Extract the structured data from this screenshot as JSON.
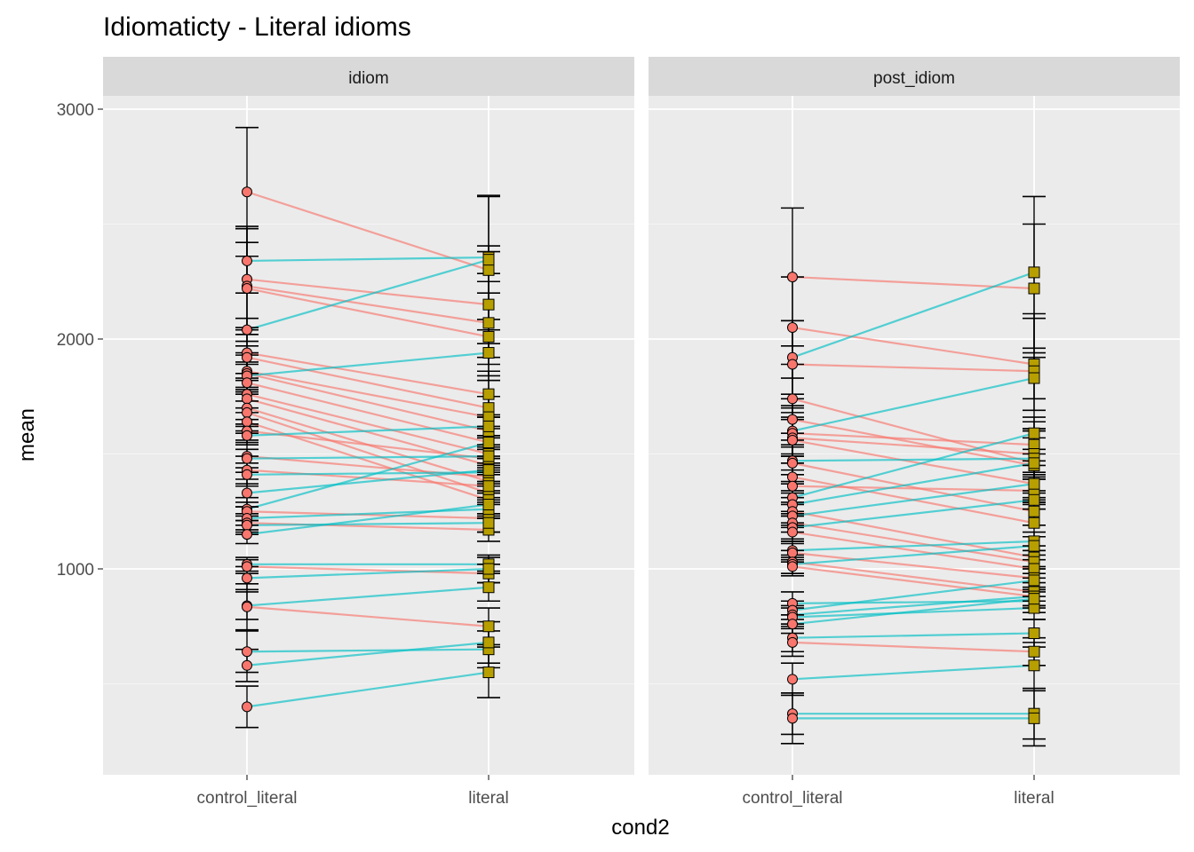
{
  "chart_data": {
    "type": "line",
    "title": "Idiomaticty - Literal idioms",
    "xlabel": "cond2",
    "ylabel": "mean",
    "categories": [
      "control_literal",
      "literal"
    ],
    "ylim": [
      200,
      3100
    ],
    "yticks": [
      1000,
      2000,
      3000
    ],
    "grid": true,
    "legend": "none",
    "colors": {
      "decrease_line": "#F8766D",
      "increase_line": "#00BFC4",
      "control_literal_point": "#F8766D",
      "literal_point": "#B79F00",
      "error_bar": "#000000"
    },
    "panels": [
      {
        "name": "idiom",
        "pairs": [
          {
            "control_literal": 2640,
            "literal": 2300,
            "control_literal_err": 280,
            "literal_err": 320
          },
          {
            "control_literal": 2340,
            "literal": 2355,
            "control_literal_err": 140,
            "literal_err": 270
          },
          {
            "control_literal": 2260,
            "literal": 2150,
            "control_literal_err": 220,
            "literal_err": 230
          },
          {
            "control_literal": 2230,
            "literal": 2070,
            "control_literal_err": 260,
            "literal_err": 180
          },
          {
            "control_literal": 2220,
            "literal": 2010,
            "control_literal_err": 200,
            "literal_err": 190
          },
          {
            "control_literal": 2040,
            "literal": 2345,
            "control_literal_err": 50,
            "literal_err": 60
          },
          {
            "control_literal": 1940,
            "literal": 1760,
            "control_literal_err": 110,
            "literal_err": 100
          },
          {
            "control_literal": 1920,
            "literal": 1700,
            "control_literal_err": 100,
            "literal_err": 120
          },
          {
            "control_literal": 1860,
            "literal": 1660,
            "control_literal_err": 70,
            "literal_err": 90
          },
          {
            "control_literal": 1850,
            "literal": 1600,
            "control_literal_err": 90,
            "literal_err": 60
          },
          {
            "control_literal": 1840,
            "literal": 1940,
            "control_literal_err": 60,
            "literal_err": 100
          },
          {
            "control_literal": 1810,
            "literal": 1550,
            "control_literal_err": 80,
            "literal_err": 70
          },
          {
            "control_literal": 1760,
            "literal": 1500,
            "control_literal_err": 60,
            "literal_err": 80
          },
          {
            "control_literal": 1740,
            "literal": 1450,
            "control_literal_err": 110,
            "literal_err": 70
          },
          {
            "control_literal": 1700,
            "literal": 1380,
            "control_literal_err": 70,
            "literal_err": 50
          },
          {
            "control_literal": 1680,
            "literal": 1330,
            "control_literal_err": 90,
            "literal_err": 40
          },
          {
            "control_literal": 1640,
            "literal": 1300,
            "control_literal_err": 40,
            "literal_err": 60
          },
          {
            "control_literal": 1600,
            "literal": 1480,
            "control_literal_err": 50,
            "literal_err": 40
          },
          {
            "control_literal": 1580,
            "literal": 1620,
            "control_literal_err": 40,
            "literal_err": 50
          },
          {
            "control_literal": 1490,
            "literal": 1400,
            "control_literal_err": 70,
            "literal_err": 60
          },
          {
            "control_literal": 1480,
            "literal": 1490,
            "control_literal_err": 40,
            "literal_err": 40
          },
          {
            "control_literal": 1430,
            "literal": 1360,
            "control_literal_err": 60,
            "literal_err": 50
          },
          {
            "control_literal": 1410,
            "literal": 1420,
            "control_literal_err": 50,
            "literal_err": 60
          },
          {
            "control_literal": 1330,
            "literal": 1430,
            "control_literal_err": 60,
            "literal_err": 50
          },
          {
            "control_literal": 1260,
            "literal": 1550,
            "control_literal_err": 50,
            "literal_err": 60
          },
          {
            "control_literal": 1250,
            "literal": 1220,
            "control_literal_err": 40,
            "literal_err": 60
          },
          {
            "control_literal": 1220,
            "literal": 1260,
            "control_literal_err": 50,
            "literal_err": 40
          },
          {
            "control_literal": 1200,
            "literal": 1170,
            "control_literal_err": 40,
            "literal_err": 50
          },
          {
            "control_literal": 1190,
            "literal": 1200,
            "control_literal_err": 40,
            "literal_err": 40
          },
          {
            "control_literal": 1150,
            "literal": 1280,
            "control_literal_err": 40,
            "literal_err": 50
          },
          {
            "control_literal": 1020,
            "literal": 1020,
            "control_literal_err": 30,
            "literal_err": 30
          },
          {
            "control_literal": 1010,
            "literal": 980,
            "control_literal_err": 30,
            "literal_err": 40
          },
          {
            "control_literal": 960,
            "literal": 1000,
            "control_literal_err": 50,
            "literal_err": 60
          },
          {
            "control_literal": 840,
            "literal": 920,
            "control_literal_err": 60,
            "literal_err": 60
          },
          {
            "control_literal": 835,
            "literal": 750,
            "control_literal_err": 100,
            "literal_err": 80
          },
          {
            "control_literal": 640,
            "literal": 650,
            "control_literal_err": 90,
            "literal_err": 80
          },
          {
            "control_literal": 580,
            "literal": 680,
            "control_literal_err": 70,
            "literal_err": 90
          },
          {
            "control_literal": 400,
            "literal": 550,
            "control_literal_err": 90,
            "literal_err": 110
          }
        ]
      },
      {
        "name": "post_idiom",
        "pairs": [
          {
            "control_literal": 2270,
            "literal": 2220,
            "control_literal_err": 300,
            "literal_err": 280
          },
          {
            "control_literal": 2050,
            "literal": 1890,
            "control_literal_err": 220,
            "literal_err": 200
          },
          {
            "control_literal": 1920,
            "literal": 2290,
            "control_literal_err": 160,
            "literal_err": 330
          },
          {
            "control_literal": 1890,
            "literal": 1860,
            "control_literal_err": 190,
            "literal_err": 250
          },
          {
            "control_literal": 1740,
            "literal": 1460,
            "control_literal_err": 150,
            "literal_err": 180
          },
          {
            "control_literal": 1650,
            "literal": 1450,
            "control_literal_err": 90,
            "literal_err": 150
          },
          {
            "control_literal": 1600,
            "literal": 1830,
            "control_literal_err": 110,
            "literal_err": 90
          },
          {
            "control_literal": 1590,
            "literal": 1540,
            "control_literal_err": 90,
            "literal_err": 70
          },
          {
            "control_literal": 1570,
            "literal": 1500,
            "control_literal_err": 80,
            "literal_err": 100
          },
          {
            "control_literal": 1560,
            "literal": 1370,
            "control_literal_err": 100,
            "literal_err": 80
          },
          {
            "control_literal": 1470,
            "literal": 1480,
            "control_literal_err": 60,
            "literal_err": 90
          },
          {
            "control_literal": 1460,
            "literal": 1250,
            "control_literal_err": 80,
            "literal_err": 60
          },
          {
            "control_literal": 1400,
            "literal": 1200,
            "control_literal_err": 60,
            "literal_err": 60
          },
          {
            "control_literal": 1360,
            "literal": 1340,
            "control_literal_err": 70,
            "literal_err": 50
          },
          {
            "control_literal": 1310,
            "literal": 1590,
            "control_literal_err": 60,
            "literal_err": 70
          },
          {
            "control_literal": 1280,
            "literal": 1460,
            "control_literal_err": 50,
            "literal_err": 40
          },
          {
            "control_literal": 1250,
            "literal": 1050,
            "control_literal_err": 60,
            "literal_err": 50
          },
          {
            "control_literal": 1230,
            "literal": 1370,
            "control_literal_err": 50,
            "literal_err": 40
          },
          {
            "control_literal": 1200,
            "literal": 1030,
            "control_literal_err": 40,
            "literal_err": 50
          },
          {
            "control_literal": 1180,
            "literal": 1300,
            "control_literal_err": 50,
            "literal_err": 40
          },
          {
            "control_literal": 1160,
            "literal": 1000,
            "control_literal_err": 40,
            "literal_err": 40
          },
          {
            "control_literal": 1080,
            "literal": 1120,
            "control_literal_err": 40,
            "literal_err": 40
          },
          {
            "control_literal": 1070,
            "literal": 960,
            "control_literal_err": 40,
            "literal_err": 50
          },
          {
            "control_literal": 1030,
            "literal": 900,
            "control_literal_err": 50,
            "literal_err": 40
          },
          {
            "control_literal": 1020,
            "literal": 1100,
            "control_literal_err": 40,
            "literal_err": 40
          },
          {
            "control_literal": 1010,
            "literal": 880,
            "control_literal_err": 40,
            "literal_err": 40
          },
          {
            "control_literal": 850,
            "literal": 860,
            "control_literal_err": 50,
            "literal_err": 50
          },
          {
            "control_literal": 820,
            "literal": 950,
            "control_literal_err": 40,
            "literal_err": 50
          },
          {
            "control_literal": 800,
            "literal": 880,
            "control_literal_err": 40,
            "literal_err": 40
          },
          {
            "control_literal": 790,
            "literal": 830,
            "control_literal_err": 40,
            "literal_err": 50
          },
          {
            "control_literal": 760,
            "literal": 870,
            "control_literal_err": 40,
            "literal_err": 40
          },
          {
            "control_literal": 700,
            "literal": 720,
            "control_literal_err": 60,
            "literal_err": 60
          },
          {
            "control_literal": 680,
            "literal": 640,
            "control_literal_err": 60,
            "literal_err": 60
          },
          {
            "control_literal": 520,
            "literal": 580,
            "control_literal_err": 70,
            "literal_err": 100
          },
          {
            "control_literal": 370,
            "literal": 370,
            "control_literal_err": 90,
            "literal_err": 110
          },
          {
            "control_literal": 350,
            "literal": 350,
            "control_literal_err": 110,
            "literal_err": 120
          }
        ]
      }
    ]
  }
}
